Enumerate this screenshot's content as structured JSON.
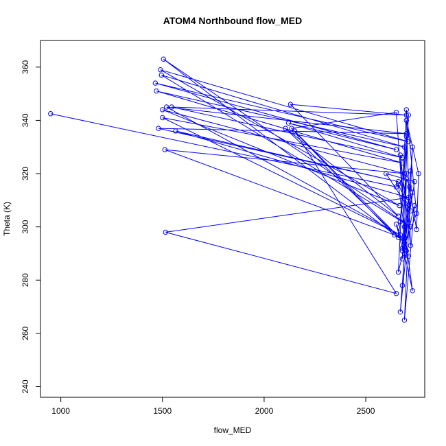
{
  "chart_data": {
    "type": "scatter",
    "title": "ATOM4 Northbound flow_MED",
    "xlabel": "flow_MED",
    "ylabel": "Theta (K)",
    "xlim": [
      900,
      2790
    ],
    "ylim": [
      236,
      370
    ],
    "x_ticks": [
      1000,
      1500,
      2000,
      2500
    ],
    "y_ticks": [
      240,
      260,
      280,
      300,
      320,
      340,
      360
    ],
    "connected": true,
    "grid": false,
    "color": "#0000ff",
    "series": [
      {
        "x": [
          950,
          2650,
          2700,
          2660,
          1505,
          2720,
          1495,
          2690,
          1470,
          2680,
          1500,
          2670,
          1520,
          2700,
          1480,
          2660,
          1565,
          2710,
          1515,
          2650,
          2150,
          2690,
          2105,
          2660,
          2130,
          2700,
          1545,
          2680,
          2120,
          2650,
          1465,
          2710,
          1490,
          2665,
          1500,
          2690,
          1512,
          2640,
          2135,
          2650,
          2700,
          2670,
          2720,
          2680,
          2730,
          2690,
          2740,
          2660,
          2700,
          2750,
          2680,
          2710,
          2670,
          2700,
          2690,
          2730,
          2660,
          2720,
          2600,
          2740,
          2680,
          2690,
          2670,
          2720,
          2700,
          2760,
          2750,
          2715,
          2690,
          2700,
          2730,
          2680,
          2650,
          2710
        ],
        "y": [
          342.5,
          315,
          320,
          296,
          363,
          300,
          357,
          330,
          351,
          324,
          341,
          297,
          345,
          335,
          337,
          317,
          336,
          311,
          298,
          275,
          336,
          294,
          337,
          304,
          346,
          342,
          345,
          326,
          339,
          329,
          354,
          332,
          359,
          308,
          344,
          320,
          329,
          297,
          337,
          343,
          291,
          268,
          321,
          278,
          330,
          265,
          308,
          283,
          344,
          305,
          291,
          342,
          302,
          334,
          290,
          276,
          316,
          306,
          320,
          317,
          288,
          300,
          327,
          293,
          340,
          320,
          299,
          315,
          296,
          318,
          313,
          292,
          301,
          289
        ]
      }
    ]
  }
}
